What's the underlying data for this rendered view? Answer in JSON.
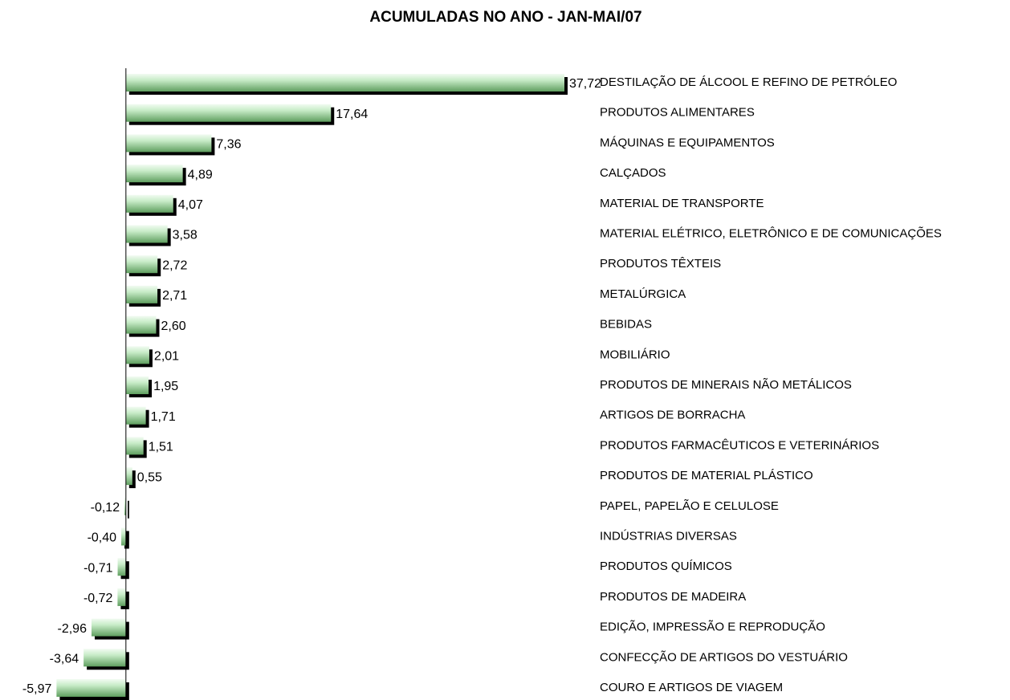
{
  "chart_data": {
    "type": "barh",
    "title": "ACUMULADAS NO ANO -  JAN-MAI/07",
    "categories": [
      "DESTILAÇÃO DE ÁLCOOL E REFINO DE PETRÓLEO",
      "PRODUTOS ALIMENTARES",
      "MÁQUINAS E EQUIPAMENTOS",
      "CALÇADOS",
      "MATERIAL DE TRANSPORTE",
      "MATERIAL ELÉTRICO, ELETRÔNICO E DE COMUNICAÇÕES",
      "PRODUTOS TÊXTEIS",
      "METALÚRGICA",
      "BEBIDAS",
      "MOBILIÁRIO",
      "PRODUTOS DE MINERAIS NÃO METÁLICOS",
      "ARTIGOS DE BORRACHA",
      "PRODUTOS FARMACÊUTICOS E VETERINÁRIOS",
      "PRODUTOS DE MATERIAL PLÁSTICO",
      "PAPEL, PAPELÃO E CELULOSE",
      "INDÚSTRIAS DIVERSAS",
      "PRODUTOS QUÍMICOS",
      "PRODUTOS DE MADEIRA",
      "EDIÇÃO, IMPRESSÃO E REPRODUÇÃO",
      "CONFECÇÃO DE ARTIGOS DO VESTUÁRIO",
      "COURO E ARTIGOS DE VIAGEM"
    ],
    "values": [
      37.72,
      17.64,
      7.36,
      4.89,
      4.07,
      3.58,
      2.72,
      2.71,
      2.6,
      2.01,
      1.95,
      1.71,
      1.51,
      0.55,
      -0.12,
      -0.4,
      -0.71,
      -0.72,
      -2.96,
      -3.64,
      -5.97
    ],
    "value_labels": [
      "37,72",
      "17,64",
      "7,36",
      "4,89",
      "4,07",
      "3,58",
      "2,72",
      "2,71",
      "2,60",
      "2,01",
      "1,95",
      "1,71",
      "1,51",
      "0,55",
      "-0,12",
      "-0,40",
      "-0,71",
      "-0,72",
      "-2,96",
      "-3,64",
      "-5,97"
    ],
    "color": "#a8dca8",
    "xlim": [
      -8,
      40
    ]
  }
}
